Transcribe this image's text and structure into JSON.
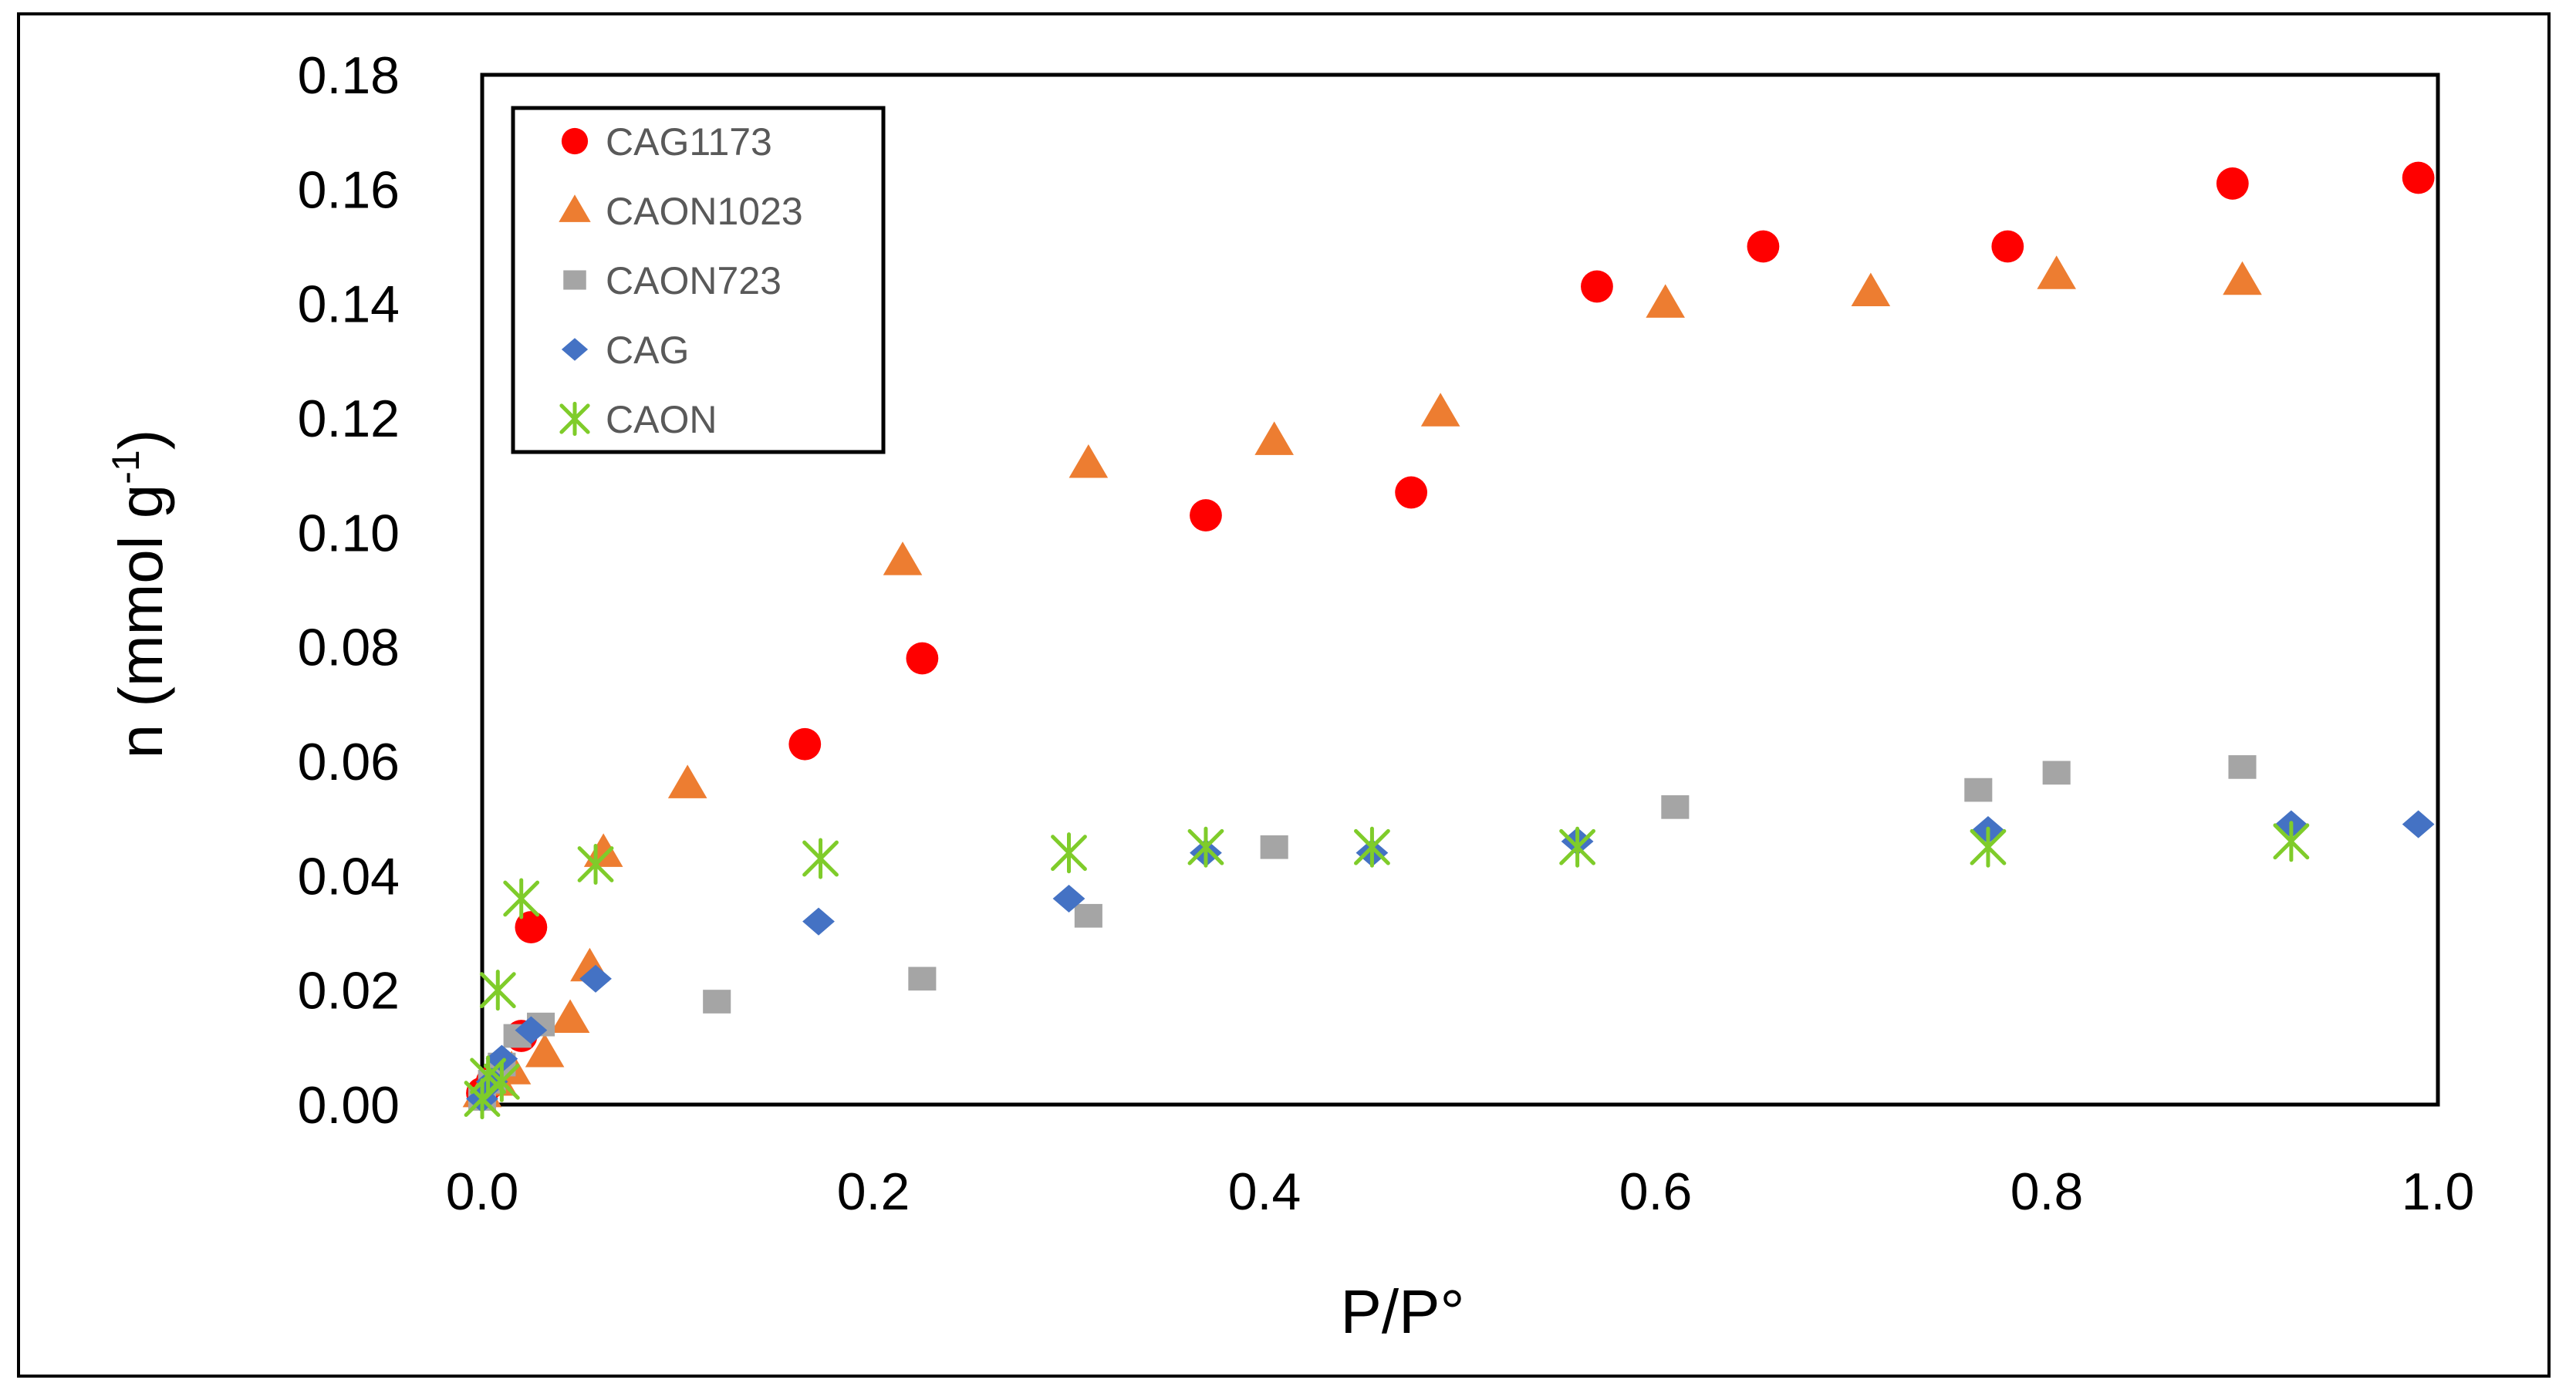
{
  "chart_data": {
    "type": "scatter",
    "title": "",
    "xlabel": "P/P°",
    "ylabel_main": "n (mmol g",
    "ylabel_sup": "-1",
    "ylabel_close": ")",
    "xlim": [
      0.0,
      1.0
    ],
    "ylim": [
      0.0,
      0.18
    ],
    "xticks": [
      0.0,
      0.2,
      0.4,
      0.6,
      0.8,
      1.0
    ],
    "yticks": [
      0.0,
      0.02,
      0.04,
      0.06,
      0.08,
      0.1,
      0.12,
      0.14,
      0.16,
      0.18
    ],
    "xtick_labels": [
      "0.0",
      "0.2",
      "0.4",
      "0.6",
      "0.8",
      "1.0"
    ],
    "ytick_labels": [
      "0.00",
      "0.02",
      "0.04",
      "0.06",
      "0.08",
      "0.10",
      "0.12",
      "0.14",
      "0.16",
      "0.18"
    ],
    "grid": false,
    "legend_position": "top-left",
    "series": [
      {
        "name": "CAG1173",
        "marker": "circle",
        "color": "#FF0000",
        "x": [
          0.0,
          0.005,
          0.01,
          0.02,
          0.025,
          0.165,
          0.225,
          0.37,
          0.475,
          0.57,
          0.655,
          0.78,
          0.895,
          0.99
        ],
        "y": [
          0.002,
          0.004,
          0.006,
          0.012,
          0.031,
          0.063,
          0.078,
          0.103,
          0.107,
          0.143,
          0.15,
          0.15,
          0.161,
          0.162
        ]
      },
      {
        "name": "CAON1023",
        "marker": "triangle",
        "color": "#ED7D31",
        "x": [
          0.0,
          0.008,
          0.015,
          0.032,
          0.045,
          0.055,
          0.062,
          0.105,
          0.215,
          0.31,
          0.405,
          0.49,
          0.605,
          0.71,
          0.805,
          0.9
        ],
        "y": [
          0.002,
          0.004,
          0.006,
          0.009,
          0.015,
          0.024,
          0.044,
          0.056,
          0.095,
          0.112,
          0.116,
          0.121,
          0.14,
          0.142,
          0.145,
          0.144
        ]
      },
      {
        "name": "CAON723",
        "marker": "square",
        "color": "#A5A5A5",
        "x": [
          0.0,
          0.005,
          0.01,
          0.018,
          0.03,
          0.12,
          0.225,
          0.31,
          0.405,
          0.61,
          0.765,
          0.805,
          0.9
        ],
        "y": [
          0.001,
          0.004,
          0.007,
          0.012,
          0.014,
          0.018,
          0.022,
          0.033,
          0.045,
          0.052,
          0.055,
          0.058,
          0.059
        ]
      },
      {
        "name": "CAG",
        "marker": "diamond",
        "color": "#4472C4",
        "x": [
          0.0,
          0.005,
          0.01,
          0.025,
          0.058,
          0.172,
          0.3,
          0.37,
          0.455,
          0.56,
          0.77,
          0.925,
          0.99
        ],
        "y": [
          0.001,
          0.004,
          0.008,
          0.013,
          0.022,
          0.032,
          0.036,
          0.044,
          0.044,
          0.046,
          0.048,
          0.049,
          0.049
        ]
      },
      {
        "name": "CAON",
        "marker": "asterisk",
        "color": "#7FCC2A",
        "x": [
          0.0,
          0.003,
          0.008,
          0.01,
          0.02,
          0.058,
          0.173,
          0.3,
          0.37,
          0.455,
          0.56,
          0.77,
          0.925
        ],
        "y": [
          0.001,
          0.005,
          0.02,
          0.004,
          0.036,
          0.042,
          0.043,
          0.044,
          0.045,
          0.045,
          0.045,
          0.045,
          0.046
        ]
      }
    ]
  }
}
